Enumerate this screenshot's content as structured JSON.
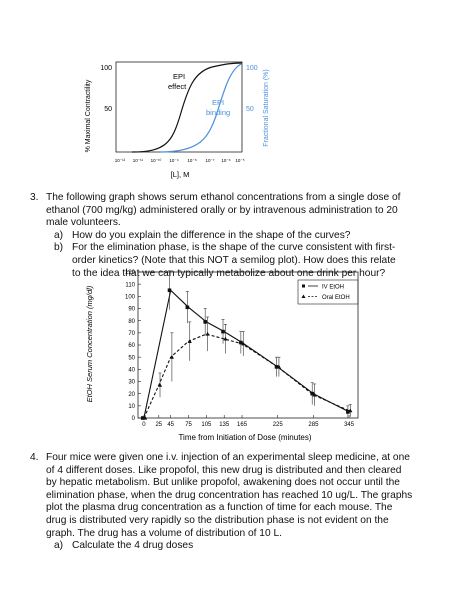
{
  "figure1": {
    "y_left_label": "% Maximal Contractility",
    "y_right_label": "Fractional Saturation (%)",
    "x_label": "[L], M",
    "y_left_ticks": [
      "100",
      "50"
    ],
    "y_right_ticks": [
      "100",
      "50"
    ],
    "x_ticks": [
      "10⁻¹²",
      "10⁻¹¹",
      "10⁻¹⁰",
      "10⁻⁹",
      "10⁻⁸",
      "10⁻⁷",
      "10⁻⁶",
      "10⁻⁵"
    ],
    "effect_label_line1": "EPI",
    "effect_label_line2": "effect",
    "binding_label_line1": "EPI",
    "binding_label_line2": "binding",
    "colors": {
      "effect": "#111111",
      "binding": "#4a90d9"
    }
  },
  "question3": {
    "number": "3.",
    "line1": "The following graph shows serum ethanol concentrations from a single dose of",
    "line2": "ethanol (700 mg/kg) administered orally or by intravenous administration to 20",
    "line3": "male volunteers.",
    "a_marker": "a)",
    "a_text": "How do you explain the difference in the shape of the curves?",
    "b_marker": "b)",
    "b_line1": "For the elimination phase, is the shape of the curve consistent with first-",
    "b_line2": "order kinetics? (Note that this NOT a semilog plot).  How does this relate",
    "b_line3": "to the idea that we can typically metabolize about one drink per hour?"
  },
  "chart_data": {
    "type": "line",
    "ylabel": "EtOH Serum Concentration (mg/dl)",
    "xlabel": "Time from Initiation of Dose (minutes)",
    "ylim": [
      0,
      120
    ],
    "y_ticks": [
      0,
      10,
      20,
      30,
      40,
      50,
      60,
      70,
      80,
      90,
      100,
      110,
      120
    ],
    "x_ticks": [
      0,
      25,
      45,
      75,
      105,
      135,
      165,
      225,
      285,
      345
    ],
    "legend_position": "top-right",
    "series": [
      {
        "name": "IV EtOH",
        "style": "solid",
        "marker": "square",
        "x": [
          0,
          45,
          75,
          105,
          135,
          165,
          225,
          285,
          345
        ],
        "y": [
          0,
          105,
          91,
          79,
          71,
          62,
          42,
          20,
          5
        ],
        "err": [
          0,
          16,
          13,
          11,
          10,
          9,
          8,
          9,
          5
        ]
      },
      {
        "name": "Oral EtOH",
        "style": "dashed",
        "marker": "triangle",
        "x": [
          0,
          25,
          45,
          75,
          105,
          135,
          165,
          225,
          285,
          345
        ],
        "y": [
          0,
          27,
          50,
          63,
          69,
          65,
          61,
          42,
          19,
          6
        ],
        "err": [
          0,
          10,
          20,
          16,
          14,
          12,
          10,
          8,
          9,
          5
        ]
      }
    ]
  },
  "question4": {
    "number": "4.",
    "line1": "Four mice were given one i.v. injection of an experimental sleep medicine, at one",
    "line2": "of 4 different doses.  Like propofol, this new drug is distributed and then cleared",
    "line3": "by hepatic metabolism.  But unlike propofol, awakening does not occur until the",
    "line4": "elimination phase, when the drug concentration has reached 10 ug/L. The graphs",
    "line5": "plot the plasma drug concentration as a function of time for each mouse.  The",
    "line6": "drug is distributed very rapidly so the distribution phase is not evident on the",
    "line7": "graph. The drug has a volume of distribution of 10 L.",
    "a_marker": "a)",
    "a_text": "Calculate the 4 drug doses"
  }
}
